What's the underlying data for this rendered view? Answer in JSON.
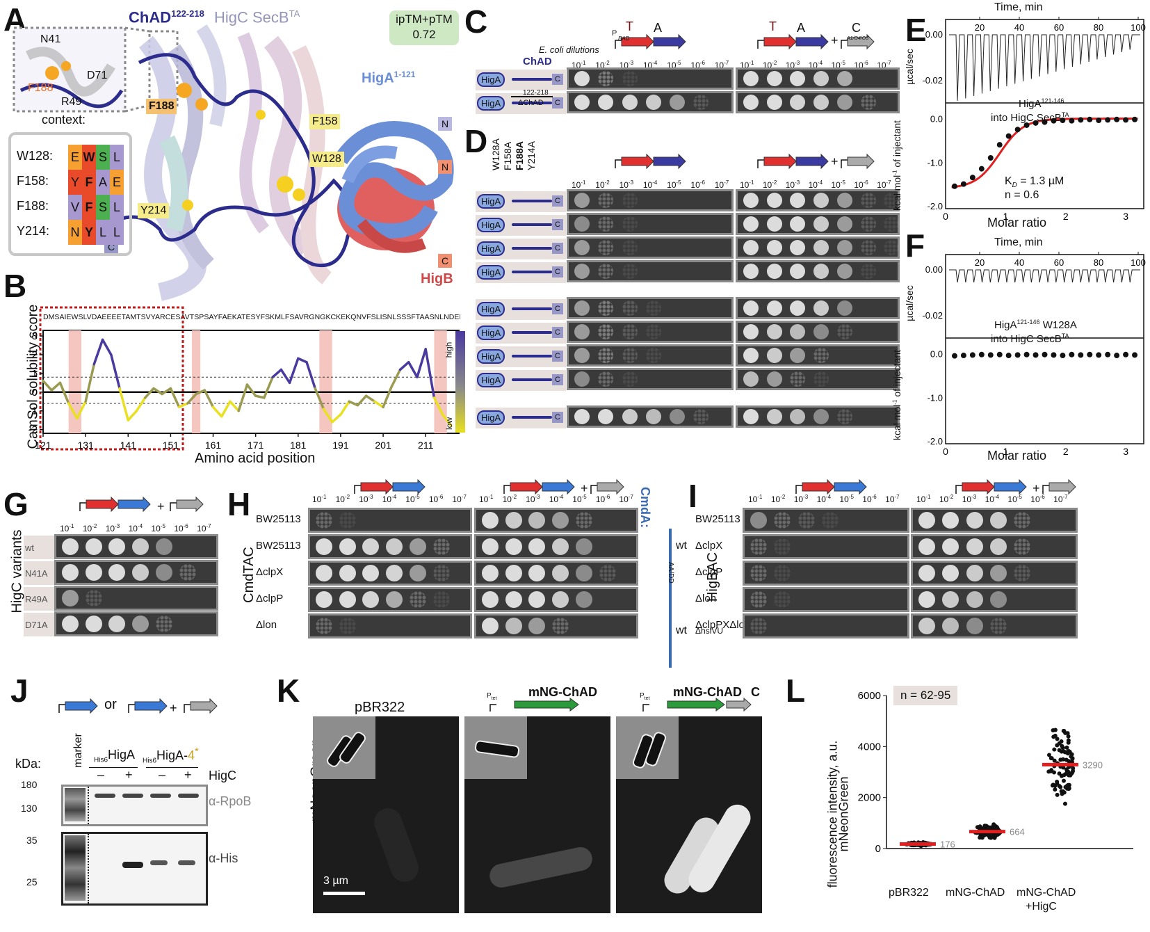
{
  "panels": {
    "A": {
      "letter": "A",
      "title_main": "ChAD",
      "title_sup": "122-218",
      "title_rest": " HigC SecB",
      "title_rest_sup": "TA",
      "badge": {
        "line1": "ipTM+pTM",
        "line2": "0.72"
      },
      "higA_label": "HigA",
      "higA_sup": "1-121",
      "higB_label": "HigB",
      "residues": [
        "F188",
        "F158",
        "W128",
        "Y214"
      ],
      "inset_residues": [
        "N41",
        "D71",
        "F188",
        "R49"
      ],
      "terminals": [
        "N",
        "N",
        "C",
        "C"
      ],
      "context_title": "context:",
      "context_rows": [
        {
          "label": "W128:",
          "aa": [
            "E",
            "W",
            "S",
            "L"
          ]
        },
        {
          "label": "F158:",
          "aa": [
            "Y",
            "F",
            "A",
            "E"
          ]
        },
        {
          "label": "F188:",
          "aa": [
            "V",
            "F",
            "S",
            "L"
          ]
        },
        {
          "label": "Y214:",
          "aa": [
            "N",
            "Y",
            "L",
            "L"
          ]
        }
      ],
      "colors": {
        "chad": "#2c2c8c",
        "higc": "#b8b8d8",
        "higa": "#6b8fd6",
        "higb": "#e06060",
        "highlight": "#f5a623",
        "badge": "#cfe8c4"
      }
    },
    "B": {
      "letter": "B",
      "sequence": "DMSAIEWSLVDAEEEETAMTSVYARCESAVTSPSAYFAEKATESYFSKMLFSAVRGNGKCKEKQNVFSLISNLSSSFTAASNLNDEMTSDGNYLLLP",
      "ylabel": "CamSol solubility score",
      "xlabel": "Amino acid position",
      "xticks": [
        "121",
        "131",
        "141",
        "151",
        "161",
        "171",
        "181",
        "191",
        "201",
        "211"
      ],
      "yticks": [
        "3",
        "2",
        "1",
        "0",
        "-1",
        "-2"
      ],
      "legend_high": "high",
      "legend_low": "low"
    },
    "C": {
      "letter": "C",
      "dilution_title": "E. coli dilutions",
      "chad_label": "ChAD",
      "range_label": "122-218",
      "delta_label": "ΔChAD",
      "gene_T": "T",
      "gene_A": "A",
      "gene_C": "C",
      "promoter": "P",
      "promoter_sub": "BAD",
      "promoter2_sub": "A1/O4/O3",
      "plus": "+",
      "dilutions": [
        "10-1",
        "10-2",
        "10-3",
        "10-4",
        "10-5",
        "10-6",
        "10-7"
      ],
      "rows": [
        {
          "label": "HigA",
          "end": "C"
        },
        {
          "label": "HigA",
          "end": "C"
        }
      ]
    },
    "D": {
      "letter": "D",
      "mutations": [
        "W128A",
        "F158A",
        "F188A",
        "Y214A"
      ],
      "row_label": "HigA",
      "row_end": "C",
      "row_count": 9
    },
    "E": {
      "letter": "E",
      "time_label": "Time, min",
      "time_ticks": [
        "20",
        "40",
        "60",
        "80",
        "100"
      ],
      "ylabel_top": "µcal/sec",
      "ytop_ticks": [
        "0.00",
        "-0.02"
      ],
      "title": "HigA",
      "title_sup": "121-146",
      "title2": "into HigC SecB",
      "title2_sup": "TA",
      "ylabel_bottom": "kcal mol",
      "ylabel_bottom_rest": " of injectant",
      "ybottom_ticks": [
        "0.0",
        "-1.0",
        "-2.0"
      ],
      "xlabel": "Molar ratio",
      "xticks": [
        "0",
        "1",
        "2",
        "3"
      ],
      "kd": "K",
      "kd_sub": "D",
      "kd_value": " = 1.3 µM",
      "n_value": "n   = 0.6"
    },
    "F": {
      "letter": "F",
      "time_label": "Time, min",
      "title": "HigA",
      "title_sup": "121-146",
      "title_rest": " W128A",
      "title2": "into HigC SecB",
      "title2_sup": "TA",
      "xlabel": "Molar ratio",
      "ybottom_ticks": [
        "0.0",
        "-1.0",
        "-2.0"
      ]
    },
    "G": {
      "letter": "G",
      "side_label": "HigC variants",
      "rows": [
        "wt",
        "N41A",
        "R49A",
        "D71A"
      ]
    },
    "H": {
      "letter": "H",
      "side_label": "CmdTAC",
      "rows": [
        "BW25113",
        "BW25113",
        "ΔclpX",
        "ΔclpP",
        "Δlon"
      ],
      "cmda_label": "CmdA:",
      "cmda_wt": "wt",
      "cmda_mut": "AA",
      "cmda_mut_sub": "/DD",
      "cmda_wt2": "wt"
    },
    "I": {
      "letter": "I",
      "side_label": "HigBAC",
      "rows": [
        "BW25113",
        "ΔclpX",
        "ΔclpP",
        "Δlon",
        "ΔclpPXΔlon",
        "ΔhslVU"
      ]
    },
    "J": {
      "letter": "J",
      "or_label": "or",
      "marker": "marker",
      "kda": "kDa:",
      "mw": [
        "180",
        "130",
        "35",
        "25"
      ],
      "his6": "His6",
      "higa": "HigA",
      "higa4": "HigA-",
      "four": "4",
      "signs": [
        "–",
        "+",
        "–",
        "+"
      ],
      "higc": "HigC",
      "rpob": "α-RpoB",
      "his": "α-His"
    },
    "K": {
      "letter": "K",
      "ylabel": "mNeonGreen",
      "samples": [
        "pBR322",
        "mNG-ChAD",
        "mNG-ChAD"
      ],
      "c_label": "C",
      "ptet": "P",
      "ptet_sub": "tet",
      "scale": "3 µm"
    },
    "L": {
      "letter": "L",
      "n_label": "n = 62-95",
      "ylabel1": "mNeonGreen",
      "ylabel2": "fluorescence intensity, a.u.",
      "yticks": [
        "6000",
        "4000",
        "2000",
        "0"
      ],
      "categories": [
        "pBR322",
        "mNG-ChAD",
        "mNG-ChAD",
        "+HigC"
      ],
      "medians": [
        "176",
        "664",
        "3290"
      ]
    }
  },
  "chart_data": [
    {
      "type": "line",
      "title": "CamSol solubility score",
      "xlabel": "Amino acid position",
      "ylabel": "CamSol solubility score",
      "xlim": [
        121,
        218
      ],
      "ylim": [
        -2.2,
        3.3
      ],
      "x": [
        121,
        123,
        125,
        127,
        129,
        131,
        133,
        135,
        137,
        139,
        141,
        143,
        145,
        147,
        149,
        151,
        153,
        155,
        157,
        159,
        161,
        163,
        165,
        167,
        169,
        171,
        173,
        175,
        177,
        179,
        181,
        183,
        185,
        187,
        189,
        191,
        193,
        195,
        197,
        199,
        201,
        203,
        205,
        207,
        209,
        211,
        213,
        215,
        217
      ],
      "y": [
        0.6,
        0.1,
        0.5,
        -0.6,
        -1.4,
        -0.5,
        1.5,
        2.8,
        2.0,
        0.2,
        -1.5,
        -1.0,
        -0.3,
        0.2,
        -0.1,
        0.2,
        -0.8,
        -0.6,
        -0.1,
        0.1,
        -0.8,
        -1.3,
        -0.5,
        -1.0,
        0.4,
        -0.2,
        -0.3,
        0.8,
        1.2,
        0.5,
        1.8,
        1.6,
        0.2,
        -0.9,
        -1.6,
        -1.2,
        -0.5,
        -0.7,
        -0.2,
        -0.5,
        -0.8,
        0.3,
        1.2,
        1.6,
        0.8,
        2.3,
        -0.3,
        -1.2,
        -1.8
      ],
      "threshold_lines": [
        0.8,
        -0.6
      ]
    },
    {
      "type": "scatter",
      "title": "ITC HigA121-146 into HigC SecBTA",
      "xlabel": "Molar ratio",
      "ylabel": "kcal mol-1 of injectant",
      "xlim": [
        0,
        3.3
      ],
      "ylim": [
        -2.0,
        0.2
      ],
      "x": [
        0.15,
        0.3,
        0.45,
        0.6,
        0.75,
        0.9,
        1.05,
        1.2,
        1.35,
        1.5,
        1.65,
        1.8,
        1.95,
        2.1,
        2.25,
        2.4,
        2.55,
        2.7,
        2.85,
        3.0,
        3.15
      ],
      "y": [
        -1.55,
        -1.5,
        -1.35,
        -1.15,
        -0.9,
        -0.6,
        -0.4,
        -0.25,
        -0.15,
        -0.1,
        -0.08,
        -0.05,
        -0.04,
        -0.05,
        -0.03,
        -0.02,
        -0.04,
        -0.03,
        -0.02,
        -0.03,
        -0.02
      ]
    },
    {
      "type": "scatter",
      "title": "ITC HigA121-146 W128A into HigC SecBTA",
      "xlabel": "Molar ratio",
      "xlim": [
        0,
        3.3
      ],
      "ylim": [
        -2.0,
        0.2
      ],
      "x": [
        0.15,
        0.3,
        0.45,
        0.6,
        0.75,
        0.9,
        1.05,
        1.2,
        1.35,
        1.5,
        1.65,
        1.8,
        1.95,
        2.1,
        2.25,
        2.4,
        2.55,
        2.7,
        2.85,
        3.0,
        3.15
      ],
      "y": [
        -0.05,
        -0.04,
        -0.03,
        -0.02,
        -0.03,
        -0.02,
        -0.04,
        -0.03,
        -0.02,
        -0.03,
        -0.02,
        -0.03,
        -0.04,
        -0.02,
        -0.03,
        -0.02,
        -0.03,
        -0.02,
        -0.04,
        -0.02,
        -0.03
      ]
    },
    {
      "type": "scatter",
      "title": "mNeonGreen fluorescence",
      "ylabel": "mNeonGreen fluorescence intensity, a.u.",
      "ylim": [
        0,
        6000
      ],
      "categories": [
        "pBR322",
        "mNG-ChAD",
        "mNG-ChAD +HigC"
      ],
      "medians": [
        176,
        664,
        3290
      ]
    }
  ]
}
